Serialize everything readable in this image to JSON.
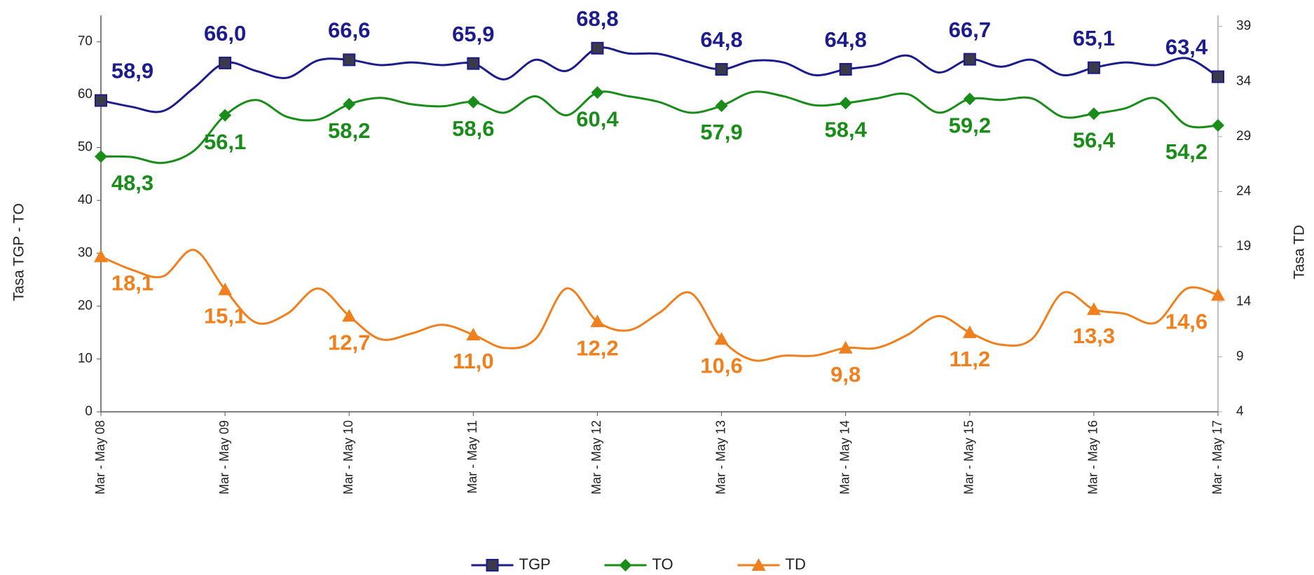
{
  "chart_data": {
    "type": "line",
    "y_label": "Tasa TGP - TO",
    "y2_label": "Tasa TD",
    "categories": [
      "Mar - May 08",
      null,
      null,
      null,
      "Mar - May 09",
      null,
      null,
      null,
      "Mar - May 10",
      null,
      null,
      null,
      "Mar - May 11",
      null,
      null,
      null,
      "Mar - May 12",
      null,
      null,
      null,
      "Mar - May 13",
      null,
      null,
      null,
      "Mar - May 14",
      null,
      null,
      null,
      "Mar - May 15",
      null,
      null,
      null,
      "Mar - May 16",
      null,
      null,
      null,
      "Mar - May 17"
    ],
    "ylim": [
      0,
      75
    ],
    "yticks": [
      0,
      10,
      20,
      30,
      40,
      50,
      60,
      70
    ],
    "y2lim": [
      4,
      40
    ],
    "y2ticks": [
      4,
      9,
      14,
      19,
      24,
      29,
      34,
      39
    ],
    "series": [
      {
        "name": "TGP",
        "color": "#1c1c8c",
        "marker": "square",
        "values": [
          58.9,
          57.7,
          56.9,
          61.3,
          66.0,
          64.5,
          63.2,
          66.5,
          66.6,
          65.6,
          66.1,
          65.6,
          65.9,
          62.9,
          66.6,
          64.5,
          68.8,
          67.8,
          67.7,
          66.1,
          64.8,
          66.4,
          66.1,
          63.7,
          64.8,
          65.6,
          67.4,
          64.2,
          66.7,
          65.3,
          66.6,
          63.7,
          65.1,
          66.1,
          65.6,
          66.9,
          63.4
        ],
        "value_labels": [
          "58,9",
          null,
          null,
          null,
          "66,0",
          null,
          null,
          null,
          "66,6",
          null,
          null,
          null,
          "65,9",
          null,
          null,
          null,
          "68,8",
          null,
          null,
          null,
          "64,8",
          null,
          null,
          null,
          "64,8",
          null,
          null,
          null,
          "66,7",
          null,
          null,
          null,
          "65,1",
          null,
          null,
          null,
          "63,4"
        ]
      },
      {
        "name": "TO",
        "color": "#1a8c1a",
        "marker": "diamond",
        "values": [
          48.3,
          48.2,
          47.1,
          49.4,
          56.1,
          59.0,
          55.8,
          55.3,
          58.2,
          59.4,
          58.2,
          57.8,
          58.6,
          56.6,
          59.7,
          56.1,
          60.4,
          59.7,
          58.6,
          56.6,
          57.9,
          60.5,
          59.7,
          58.0,
          58.4,
          59.3,
          60.1,
          56.6,
          59.2,
          59.0,
          59.3,
          55.8,
          56.4,
          57.4,
          59.3,
          54.2,
          54.2
        ],
        "value_labels": [
          "48,3",
          null,
          null,
          null,
          "56,1",
          null,
          null,
          null,
          "58,2",
          null,
          null,
          null,
          "58,6",
          null,
          null,
          null,
          "60,4",
          null,
          null,
          null,
          "57,9",
          null,
          null,
          null,
          "58,4",
          null,
          null,
          null,
          "59,2",
          null,
          null,
          null,
          "56,4",
          null,
          null,
          null,
          "54,2"
        ]
      },
      {
        "name": "TD",
        "color": "#f07f1e",
        "marker": "triangle",
        "axis": "y2",
        "values": [
          18.1,
          16.9,
          16.3,
          18.7,
          15.1,
          12.1,
          12.9,
          15.2,
          12.7,
          10.6,
          11.1,
          11.9,
          11.0,
          9.8,
          10.6,
          15.2,
          12.2,
          11.4,
          13.0,
          14.8,
          10.6,
          8.7,
          9.1,
          9.1,
          9.8,
          9.8,
          11.0,
          12.7,
          11.2,
          10.1,
          10.6,
          14.8,
          13.3,
          12.9,
          12.1,
          15.2,
          14.6
        ],
        "value_labels": [
          "18,1",
          null,
          null,
          null,
          "15,1",
          null,
          null,
          null,
          "12,7",
          null,
          null,
          null,
          "11,0",
          null,
          null,
          null,
          "12,2",
          null,
          null,
          null,
          "10,6",
          null,
          null,
          null,
          "9,8",
          null,
          null,
          null,
          "11,2",
          null,
          null,
          null,
          "13,3",
          null,
          null,
          null,
          "14,6"
        ]
      }
    ],
    "legend": "bottom"
  }
}
